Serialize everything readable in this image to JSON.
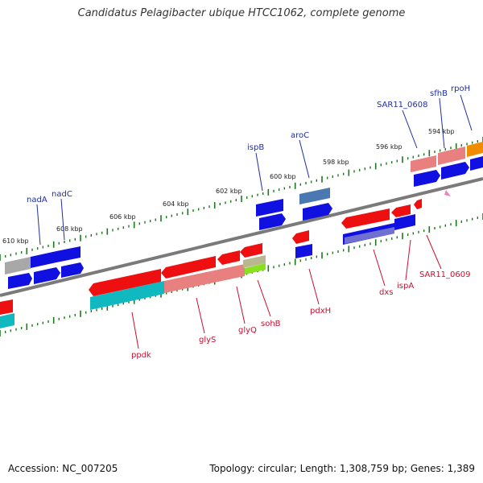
{
  "title": "Candidatus Pelagibacter ubique HTCC1062, complete genome",
  "footer": {
    "accession": "Accession: NC_007205",
    "summary": "Topology: circular; Length: 1,308,759 bp; Genes: 1,389"
  },
  "kbp_labels": [
    "610 kbp",
    "608 kbp",
    "606 kbp",
    "604 kbp",
    "602 kbp",
    "600 kbp",
    "598 kbp",
    "596 kbp",
    "594 kbp"
  ],
  "forward_genes": [
    "nadA",
    "nadC",
    "ispB",
    "aroC",
    "SAR11_0608",
    "sfhB",
    "rpoH"
  ],
  "reverse_genes": [
    "ppdk",
    "glyS",
    "glyQ",
    "sohB",
    "pdxH",
    "dxs",
    "ispA",
    "SAR11_0609"
  ],
  "colors": {
    "blue_gene": "#1010e0",
    "red_gene": "#ee1010",
    "pink_gene": "#e88080",
    "cyan_gene": "#10b8c0",
    "orange_gene": "#f08c00",
    "steel_gene": "#4a78b0",
    "gray_gene": "#a8a8a8",
    "green_gene": "#88e020",
    "label_blue": "#1f2f9f",
    "label_red": "#c8102e",
    "tick_green": "#1a7a1a"
  }
}
